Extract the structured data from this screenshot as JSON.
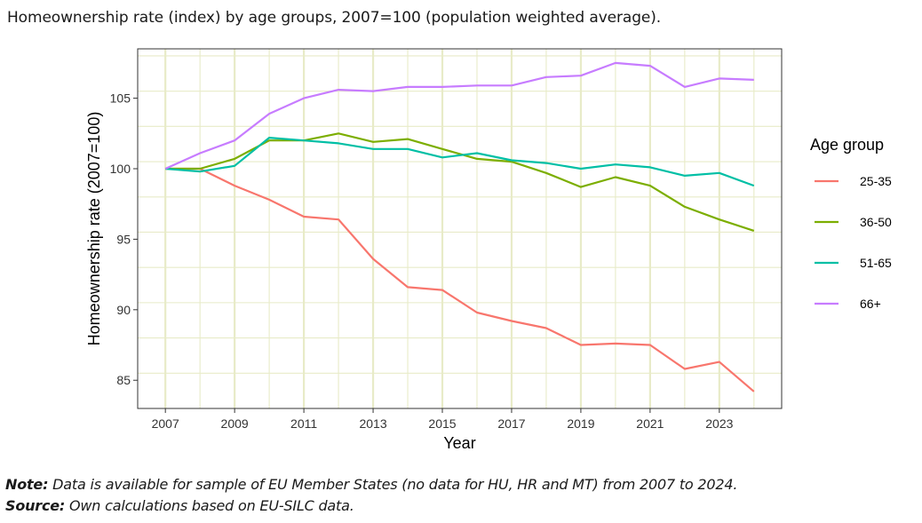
{
  "title": "Homeownership rate (index) by age groups, 2007=100 (population weighted average).",
  "chart_data": {
    "type": "line",
    "title": "Homeownership rate (index) by age groups, 2007=100 (population weighted average).",
    "xlabel": "Year",
    "ylabel": "Homeownership rate (2007=100)",
    "xlim": [
      2006.2,
      2024.8
    ],
    "ylim": [
      83.0,
      108.5
    ],
    "x_ticks": [
      2007,
      2009,
      2011,
      2013,
      2015,
      2017,
      2019,
      2021,
      2023
    ],
    "y_ticks": [
      85,
      90,
      95,
      100,
      105
    ],
    "grid": true,
    "legend_title": "Age group",
    "legend_position": "right",
    "x": [
      2007,
      2008,
      2009,
      2010,
      2011,
      2012,
      2013,
      2014,
      2015,
      2016,
      2017,
      2018,
      2019,
      2020,
      2021,
      2022,
      2023,
      2024
    ],
    "series": [
      {
        "name": "25-35",
        "color": "#F8766D",
        "values": [
          100.0,
          100.0,
          98.8,
          97.8,
          96.6,
          96.4,
          93.6,
          91.6,
          91.4,
          89.8,
          89.2,
          88.7,
          87.5,
          87.6,
          87.5,
          85.8,
          86.3,
          84.2
        ]
      },
      {
        "name": "36-50",
        "color": "#7CAE00",
        "values": [
          100.0,
          100.0,
          100.7,
          102.0,
          102.0,
          102.5,
          101.9,
          102.1,
          101.4,
          100.7,
          100.5,
          99.7,
          98.7,
          99.4,
          98.8,
          97.3,
          96.4,
          95.6
        ]
      },
      {
        "name": "51-65",
        "color": "#00BFA5",
        "values": [
          100.0,
          99.8,
          100.2,
          102.2,
          102.0,
          101.8,
          101.4,
          101.4,
          100.8,
          101.1,
          100.6,
          100.4,
          100.0,
          100.3,
          100.1,
          99.5,
          99.7,
          98.8
        ]
      },
      {
        "name": "66+",
        "color": "#C77CFF",
        "values": [
          100.0,
          101.1,
          102.0,
          103.9,
          105.0,
          105.6,
          105.5,
          105.8,
          105.8,
          105.9,
          105.9,
          106.5,
          106.6,
          107.5,
          107.3,
          105.8,
          106.4,
          106.3
        ]
      }
    ]
  },
  "note": {
    "note_label": "Note:",
    "note_text": " Data is available for sample of EU Member States (no data for HU, HR and MT) from 2007 to 2024.",
    "source_label": "Source:",
    "source_text": " Own calculations based on EU-SILC data."
  }
}
